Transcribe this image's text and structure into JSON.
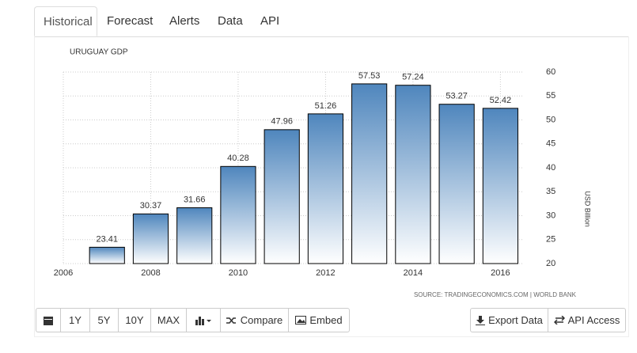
{
  "tabs": [
    "Historical",
    "Forecast",
    "Alerts",
    "Data",
    "API"
  ],
  "chart_data": {
    "type": "bar",
    "title": "URUGUAY GDP",
    "y_label": "USD Billion",
    "source": "SOURCE: TRADINGECONOMICS.COM | WORLD BANK",
    "x": [
      2007,
      2008,
      2009,
      2010,
      2011,
      2012,
      2013,
      2014,
      2015,
      2016
    ],
    "values": [
      23.41,
      30.37,
      31.66,
      40.28,
      47.96,
      51.26,
      57.53,
      57.24,
      53.27,
      52.42
    ],
    "color": "#4f86bd",
    "xlim": [
      2006,
      2016.5
    ],
    "xticks": [
      2006,
      2008,
      2010,
      2012,
      2014,
      2016
    ],
    "ylim": [
      20,
      60
    ],
    "yticks": [
      20,
      25,
      30,
      35,
      40,
      45,
      50,
      55,
      60
    ],
    "grid": true
  },
  "toolbar": [
    "1Y",
    "5Y",
    "10Y",
    "MAX",
    "Compare",
    "Embed"
  ],
  "actions": [
    "Export Data",
    "API Access"
  ]
}
